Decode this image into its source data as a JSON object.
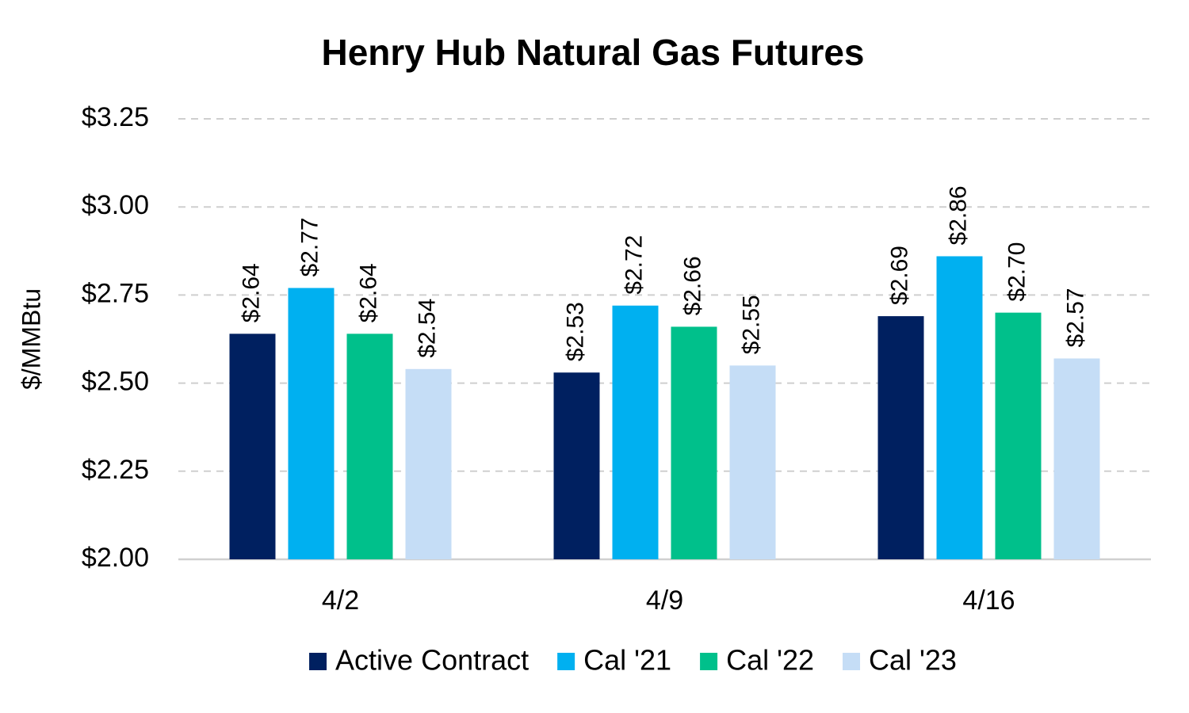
{
  "chart_data": {
    "type": "bar",
    "title": "Henry Hub Natural Gas Futures",
    "y_label": "$/MMBtu",
    "categories": [
      "4/2",
      "4/9",
      "4/16"
    ],
    "series": [
      {
        "name": "Active Contract",
        "color": "#002060",
        "values": [
          2.64,
          2.53,
          2.69
        ],
        "value_labels": [
          "$2.64",
          "$2.53",
          "$2.69"
        ]
      },
      {
        "name": "Cal '21",
        "color": "#00b0f0",
        "values": [
          2.77,
          2.72,
          2.86
        ],
        "value_labels": [
          "$2.77",
          "$2.72",
          "$2.86"
        ]
      },
      {
        "name": "Cal '22",
        "color": "#00c08b",
        "values": [
          2.64,
          2.66,
          2.7
        ],
        "value_labels": [
          "$2.64",
          "$2.66",
          "$2.70"
        ]
      },
      {
        "name": "Cal '23",
        "color": "#c5ddf6",
        "values": [
          2.54,
          2.55,
          2.57
        ],
        "value_labels": [
          "$2.54",
          "$2.55",
          "$2.57"
        ]
      }
    ],
    "ylim": [
      2.0,
      3.25
    ],
    "yticks": [
      {
        "value": 2.0,
        "label": "$2.00"
      },
      {
        "value": 2.25,
        "label": "$2.25"
      },
      {
        "value": 2.5,
        "label": "$2.50"
      },
      {
        "value": 2.75,
        "label": "$2.75"
      },
      {
        "value": 3.0,
        "label": "$3.00"
      },
      {
        "value": 3.25,
        "label": "$3.25"
      }
    ],
    "grid": true,
    "legend": "bottom"
  }
}
